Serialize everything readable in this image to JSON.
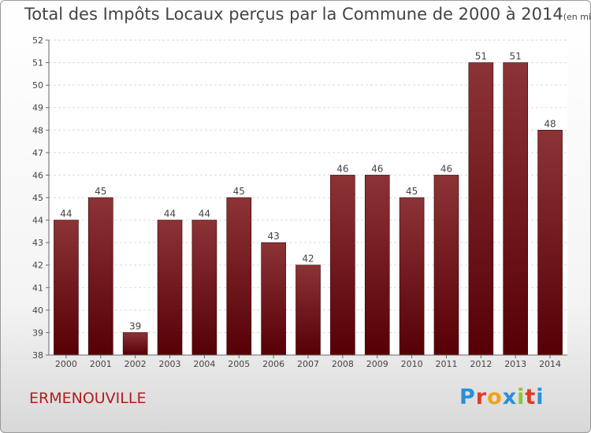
{
  "chart_data": {
    "type": "bar",
    "title": "Total des Impôts Locaux perçus par la Commune de 2000 à 2014",
    "subtitle": "(en milliers d'€)",
    "categories": [
      "2000",
      "2001",
      "2002",
      "2003",
      "2004",
      "2005",
      "2006",
      "2007",
      "2008",
      "2009",
      "2010",
      "2011",
      "2012",
      "2013",
      "2014"
    ],
    "values": [
      44,
      45,
      39,
      44,
      44,
      45,
      43,
      42,
      46,
      46,
      45,
      46,
      51,
      51,
      48
    ],
    "ylim": [
      38,
      52
    ],
    "yticks": [
      38,
      39,
      40,
      41,
      42,
      43,
      44,
      45,
      46,
      47,
      48,
      49,
      50,
      51,
      52
    ],
    "xlabel": "",
    "ylabel": "",
    "grid": true,
    "bar_color": "#7a1a1d"
  },
  "commune": "ERMENOUVILLE",
  "logo": {
    "letters": [
      "P",
      "r",
      "o",
      "x",
      "i",
      "t",
      "i"
    ],
    "colors": [
      "#2a8fd6",
      "#e03a2a",
      "#f0a21a",
      "#2a8fd6",
      "#8cc43a",
      "#e03a2a",
      "#2a8fd6"
    ]
  }
}
